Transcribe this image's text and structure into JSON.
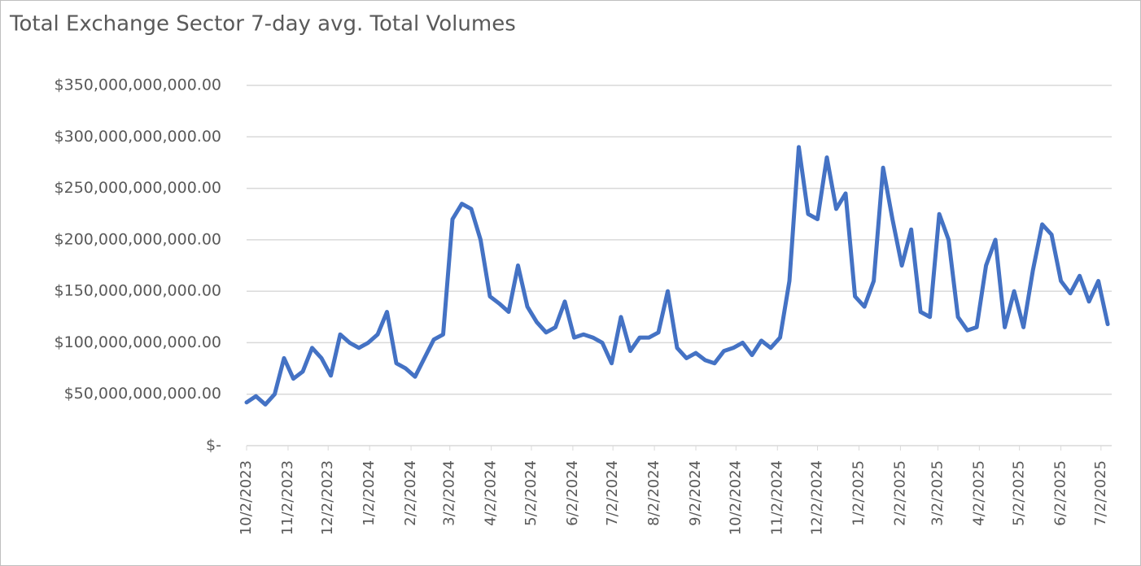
{
  "chart_data": {
    "type": "line",
    "title": "Total Exchange Sector 7-day avg. Total Volumes",
    "x": [
      "2023-10-02",
      "2023-10-09",
      "2023-10-16",
      "2023-10-23",
      "2023-10-30",
      "2023-11-06",
      "2023-11-13",
      "2023-11-20",
      "2023-11-27",
      "2023-12-04",
      "2023-12-11",
      "2023-12-18",
      "2023-12-25",
      "2024-01-01",
      "2024-01-08",
      "2024-01-15",
      "2024-01-22",
      "2024-01-29",
      "2024-02-05",
      "2024-02-12",
      "2024-02-19",
      "2024-02-26",
      "2024-03-04",
      "2024-03-11",
      "2024-03-18",
      "2024-03-25",
      "2024-04-01",
      "2024-04-08",
      "2024-04-15",
      "2024-04-22",
      "2024-04-29",
      "2024-05-06",
      "2024-05-13",
      "2024-05-20",
      "2024-05-27",
      "2024-06-03",
      "2024-06-10",
      "2024-06-17",
      "2024-06-24",
      "2024-07-01",
      "2024-07-08",
      "2024-07-15",
      "2024-07-22",
      "2024-07-29",
      "2024-08-05",
      "2024-08-12",
      "2024-08-19",
      "2024-08-26",
      "2024-09-02",
      "2024-09-09",
      "2024-09-16",
      "2024-09-23",
      "2024-09-30",
      "2024-10-07",
      "2024-10-14",
      "2024-10-21",
      "2024-10-28",
      "2024-11-04",
      "2024-11-11",
      "2024-11-18",
      "2024-11-25",
      "2024-12-02",
      "2024-12-09",
      "2024-12-16",
      "2024-12-23",
      "2024-12-30",
      "2025-01-06",
      "2025-01-13",
      "2025-01-20",
      "2025-01-27",
      "2025-02-03",
      "2025-02-10",
      "2025-02-17",
      "2025-02-24",
      "2025-03-03",
      "2025-03-10",
      "2025-03-17",
      "2025-03-24",
      "2025-03-31",
      "2025-04-07",
      "2025-04-14",
      "2025-04-21",
      "2025-04-28",
      "2025-05-05",
      "2025-05-12",
      "2025-05-19",
      "2025-05-26",
      "2025-06-02",
      "2025-06-09",
      "2025-06-16",
      "2025-06-23",
      "2025-06-30",
      "2025-07-07"
    ],
    "series": [
      {
        "name": "7-day avg. Total Volumes",
        "color": "#4472c4",
        "values": [
          42000000000,
          48000000000,
          40000000000,
          50000000000,
          85000000000,
          65000000000,
          72000000000,
          95000000000,
          85000000000,
          68000000000,
          108000000000,
          100000000000,
          95000000000,
          100000000000,
          108000000000,
          130000000000,
          80000000000,
          75000000000,
          67000000000,
          85000000000,
          103000000000,
          108000000000,
          220000000000,
          235000000000,
          230000000000,
          200000000000,
          145000000000,
          138000000000,
          130000000000,
          175000000000,
          135000000000,
          120000000000,
          110000000000,
          115000000000,
          140000000000,
          105000000000,
          108000000000,
          105000000000,
          100000000000,
          80000000000,
          125000000000,
          92000000000,
          105000000000,
          105000000000,
          110000000000,
          150000000000,
          95000000000,
          85000000000,
          90000000000,
          83000000000,
          80000000000,
          92000000000,
          95000000000,
          100000000000,
          88000000000,
          102000000000,
          95000000000,
          105000000000,
          160000000000,
          290000000000,
          225000000000,
          220000000000,
          280000000000,
          230000000000,
          245000000000,
          145000000000,
          135000000000,
          160000000000,
          270000000000,
          220000000000,
          175000000000,
          210000000000,
          130000000000,
          125000000000,
          225000000000,
          200000000000,
          125000000000,
          112000000000,
          115000000000,
          175000000000,
          200000000000,
          115000000000,
          150000000000,
          115000000000,
          170000000000,
          215000000000,
          205000000000,
          160000000000,
          148000000000,
          165000000000,
          140000000000,
          160000000000,
          118000000000
        ]
      }
    ],
    "xlim": [
      "2023-10-02",
      "2025-07-10"
    ],
    "xticks": [
      {
        "value": "2023-10-02",
        "label": "10/2/2023"
      },
      {
        "value": "2023-11-02",
        "label": "11/2/2023"
      },
      {
        "value": "2023-12-02",
        "label": "12/2/2023"
      },
      {
        "value": "2024-01-02",
        "label": "1/2/2024"
      },
      {
        "value": "2024-02-02",
        "label": "2/2/2024"
      },
      {
        "value": "2024-03-02",
        "label": "3/2/2024"
      },
      {
        "value": "2024-04-02",
        "label": "4/2/2024"
      },
      {
        "value": "2024-05-02",
        "label": "5/2/2024"
      },
      {
        "value": "2024-06-02",
        "label": "6/2/2024"
      },
      {
        "value": "2024-07-02",
        "label": "7/2/2024"
      },
      {
        "value": "2024-08-02",
        "label": "8/2/2024"
      },
      {
        "value": "2024-09-02",
        "label": "9/2/2024"
      },
      {
        "value": "2024-10-02",
        "label": "10/2/2024"
      },
      {
        "value": "2024-11-02",
        "label": "11/2/2024"
      },
      {
        "value": "2024-12-02",
        "label": "12/2/2024"
      },
      {
        "value": "2025-01-02",
        "label": "1/2/2025"
      },
      {
        "value": "2025-02-02",
        "label": "2/2/2025"
      },
      {
        "value": "2025-03-02",
        "label": "3/2/2025"
      },
      {
        "value": "2025-04-02",
        "label": "4/2/2025"
      },
      {
        "value": "2025-05-02",
        "label": "5/2/2025"
      },
      {
        "value": "2025-06-02",
        "label": "6/2/2025"
      },
      {
        "value": "2025-07-02",
        "label": "7/2/2025"
      }
    ],
    "ylim": [
      0,
      350000000000
    ],
    "yticks": [
      {
        "value": 0,
        "label": "$-"
      },
      {
        "value": 50000000000,
        "label": "$50,000,000,000.00"
      },
      {
        "value": 100000000000,
        "label": "$100,000,000,000.00"
      },
      {
        "value": 150000000000,
        "label": "$150,000,000,000.00"
      },
      {
        "value": 200000000000,
        "label": "$200,000,000,000.00"
      },
      {
        "value": 250000000000,
        "label": "$250,000,000,000.00"
      },
      {
        "value": 300000000000,
        "label": "$300,000,000,000.00"
      },
      {
        "value": 350000000000,
        "label": "$350,000,000,000.00"
      }
    ],
    "grid": true
  }
}
